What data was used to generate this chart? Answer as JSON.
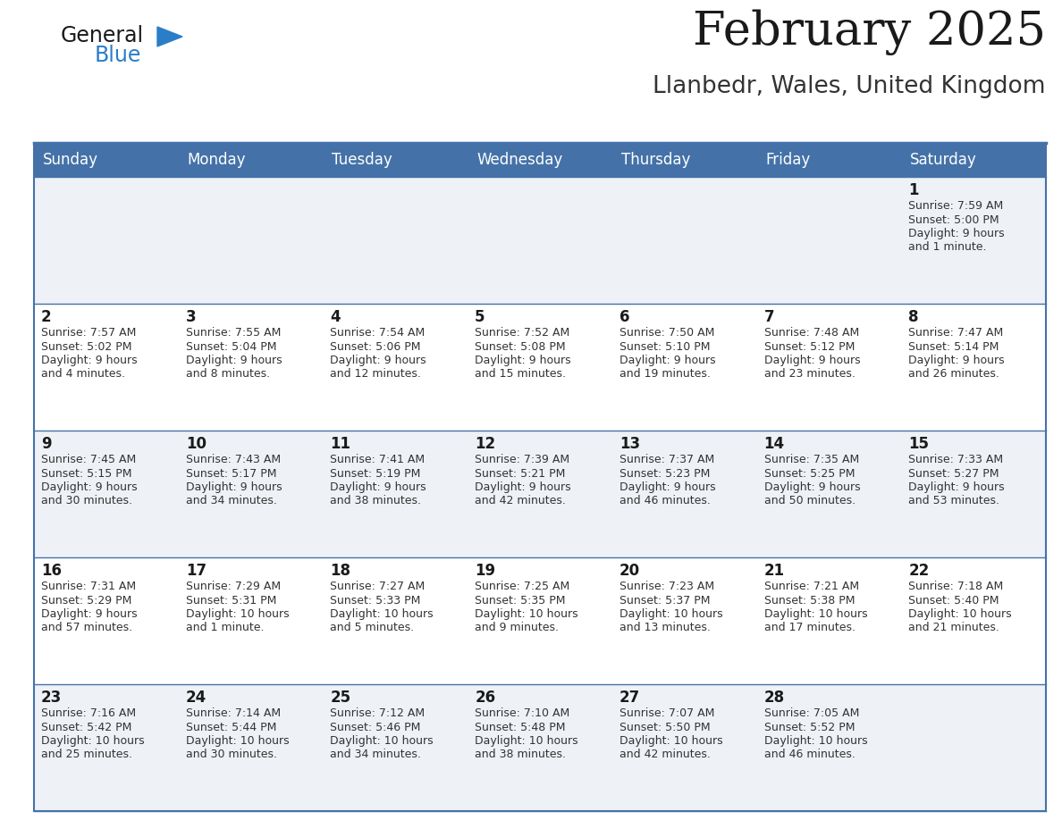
{
  "title": "February 2025",
  "subtitle": "Llanbedr, Wales, United Kingdom",
  "header_bg": "#4472a8",
  "header_text": "#ffffff",
  "row_bg_alt": "#eef2f7",
  "row_bg_white": "#ffffff",
  "cell_border": "#4472a8",
  "day_headers": [
    "Sunday",
    "Monday",
    "Tuesday",
    "Wednesday",
    "Thursday",
    "Friday",
    "Saturday"
  ],
  "days": [
    {
      "day": 1,
      "col": 6,
      "row": 0,
      "sunrise": "7:59 AM",
      "sunset": "5:00 PM",
      "daylight": "9 hours and 1 minute."
    },
    {
      "day": 2,
      "col": 0,
      "row": 1,
      "sunrise": "7:57 AM",
      "sunset": "5:02 PM",
      "daylight": "9 hours and 4 minutes."
    },
    {
      "day": 3,
      "col": 1,
      "row": 1,
      "sunrise": "7:55 AM",
      "sunset": "5:04 PM",
      "daylight": "9 hours and 8 minutes."
    },
    {
      "day": 4,
      "col": 2,
      "row": 1,
      "sunrise": "7:54 AM",
      "sunset": "5:06 PM",
      "daylight": "9 hours and 12 minutes."
    },
    {
      "day": 5,
      "col": 3,
      "row": 1,
      "sunrise": "7:52 AM",
      "sunset": "5:08 PM",
      "daylight": "9 hours and 15 minutes."
    },
    {
      "day": 6,
      "col": 4,
      "row": 1,
      "sunrise": "7:50 AM",
      "sunset": "5:10 PM",
      "daylight": "9 hours and 19 minutes."
    },
    {
      "day": 7,
      "col": 5,
      "row": 1,
      "sunrise": "7:48 AM",
      "sunset": "5:12 PM",
      "daylight": "9 hours and 23 minutes."
    },
    {
      "day": 8,
      "col": 6,
      "row": 1,
      "sunrise": "7:47 AM",
      "sunset": "5:14 PM",
      "daylight": "9 hours and 26 minutes."
    },
    {
      "day": 9,
      "col": 0,
      "row": 2,
      "sunrise": "7:45 AM",
      "sunset": "5:15 PM",
      "daylight": "9 hours and 30 minutes."
    },
    {
      "day": 10,
      "col": 1,
      "row": 2,
      "sunrise": "7:43 AM",
      "sunset": "5:17 PM",
      "daylight": "9 hours and 34 minutes."
    },
    {
      "day": 11,
      "col": 2,
      "row": 2,
      "sunrise": "7:41 AM",
      "sunset": "5:19 PM",
      "daylight": "9 hours and 38 minutes."
    },
    {
      "day": 12,
      "col": 3,
      "row": 2,
      "sunrise": "7:39 AM",
      "sunset": "5:21 PM",
      "daylight": "9 hours and 42 minutes."
    },
    {
      "day": 13,
      "col": 4,
      "row": 2,
      "sunrise": "7:37 AM",
      "sunset": "5:23 PM",
      "daylight": "9 hours and 46 minutes."
    },
    {
      "day": 14,
      "col": 5,
      "row": 2,
      "sunrise": "7:35 AM",
      "sunset": "5:25 PM",
      "daylight": "9 hours and 50 minutes."
    },
    {
      "day": 15,
      "col": 6,
      "row": 2,
      "sunrise": "7:33 AM",
      "sunset": "5:27 PM",
      "daylight": "9 hours and 53 minutes."
    },
    {
      "day": 16,
      "col": 0,
      "row": 3,
      "sunrise": "7:31 AM",
      "sunset": "5:29 PM",
      "daylight": "9 hours and 57 minutes."
    },
    {
      "day": 17,
      "col": 1,
      "row": 3,
      "sunrise": "7:29 AM",
      "sunset": "5:31 PM",
      "daylight": "10 hours and 1 minute."
    },
    {
      "day": 18,
      "col": 2,
      "row": 3,
      "sunrise": "7:27 AM",
      "sunset": "5:33 PM",
      "daylight": "10 hours and 5 minutes."
    },
    {
      "day": 19,
      "col": 3,
      "row": 3,
      "sunrise": "7:25 AM",
      "sunset": "5:35 PM",
      "daylight": "10 hours and 9 minutes."
    },
    {
      "day": 20,
      "col": 4,
      "row": 3,
      "sunrise": "7:23 AM",
      "sunset": "5:37 PM",
      "daylight": "10 hours and 13 minutes."
    },
    {
      "day": 21,
      "col": 5,
      "row": 3,
      "sunrise": "7:21 AM",
      "sunset": "5:38 PM",
      "daylight": "10 hours and 17 minutes."
    },
    {
      "day": 22,
      "col": 6,
      "row": 3,
      "sunrise": "7:18 AM",
      "sunset": "5:40 PM",
      "daylight": "10 hours and 21 minutes."
    },
    {
      "day": 23,
      "col": 0,
      "row": 4,
      "sunrise": "7:16 AM",
      "sunset": "5:42 PM",
      "daylight": "10 hours and 25 minutes."
    },
    {
      "day": 24,
      "col": 1,
      "row": 4,
      "sunrise": "7:14 AM",
      "sunset": "5:44 PM",
      "daylight": "10 hours and 30 minutes."
    },
    {
      "day": 25,
      "col": 2,
      "row": 4,
      "sunrise": "7:12 AM",
      "sunset": "5:46 PM",
      "daylight": "10 hours and 34 minutes."
    },
    {
      "day": 26,
      "col": 3,
      "row": 4,
      "sunrise": "7:10 AM",
      "sunset": "5:48 PM",
      "daylight": "10 hours and 38 minutes."
    },
    {
      "day": 27,
      "col": 4,
      "row": 4,
      "sunrise": "7:07 AM",
      "sunset": "5:50 PM",
      "daylight": "10 hours and 42 minutes."
    },
    {
      "day": 28,
      "col": 5,
      "row": 4,
      "sunrise": "7:05 AM",
      "sunset": "5:52 PM",
      "daylight": "10 hours and 46 minutes."
    }
  ],
  "logo_color_general": "#1a1a1a",
  "logo_color_blue": "#2a7ec8",
  "logo_triangle_color": "#2a7ec8",
  "title_color": "#1a1a1a",
  "subtitle_color": "#333333",
  "day_num_color": "#1a1a1a",
  "info_text_color": "#333333",
  "title_fontsize": 38,
  "subtitle_fontsize": 19,
  "header_fontsize": 12,
  "day_num_fontsize": 12,
  "info_fontsize": 9
}
